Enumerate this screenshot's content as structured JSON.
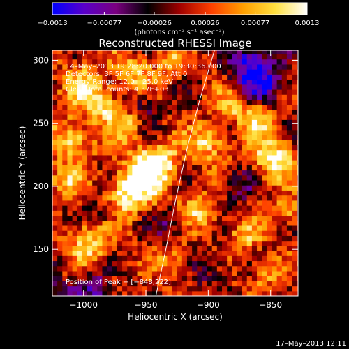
{
  "chart_data": {
    "type": "heatmap",
    "title": "Reconstructed RHESSI Image",
    "xlabel": "Heliocentric X (arcsec)",
    "ylabel": "Heliocentric Y (arcsec)",
    "xlim": [
      -1025,
      -828
    ],
    "ylim": [
      113,
      308
    ],
    "x_ticks": [
      -1000,
      -950,
      -900,
      -850
    ],
    "x_tick_labels": [
      "−1000",
      "−950",
      "−900",
      "−850"
    ],
    "y_ticks": [
      150,
      200,
      250,
      300
    ],
    "y_tick_labels": [
      "150",
      "200",
      "250",
      "300"
    ],
    "colorbar": {
      "min": -0.0013,
      "max": 0.0013,
      "ticks": [
        -0.0013,
        -0.00077,
        -0.00026,
        0.00026,
        0.00077,
        0.0013
      ],
      "tick_labels": [
        "−0.0013",
        "−0.00077",
        "−0.00026",
        "0.00026",
        "0.00077",
        "0.0013"
      ],
      "unit_label": "(photons cm⁻² s⁻¹ asec⁻²)",
      "colormap": [
        "#0000ff",
        "#5a00c8",
        "#7a0080",
        "#000000",
        "#a00000",
        "#ff4000",
        "#ffa000",
        "#ffe040",
        "#ffffff"
      ]
    },
    "annotations": {
      "time": "14–May–2013 19:28:20.000 to 19:30:36.000",
      "detectors": "Detectors: 3F 5F 6F 7F 8F 9F, Att 0",
      "energy": "Energy Range: 12.0 – 25.0 keV",
      "clean": "Clean     Total counts: 4.37E+03",
      "peak": "Position of Peak = [−848,222]"
    },
    "peak": {
      "x": -848,
      "y": 222
    },
    "limb_line": [
      [
        -942,
        113
      ],
      [
        -934,
        150
      ],
      [
        -926,
        190
      ],
      [
        -917,
        230
      ],
      [
        -907,
        268
      ],
      [
        -895,
        308
      ]
    ],
    "pixel_size_arcsec": 4,
    "blobs": [
      {
        "x": -953,
        "y": 207,
        "amp": 1.0,
        "r": 14
      },
      {
        "x": -938,
        "y": 222,
        "amp": 0.7,
        "r": 10
      },
      {
        "x": -968,
        "y": 190,
        "amp": 0.6,
        "r": 10
      },
      {
        "x": -1008,
        "y": 238,
        "amp": 0.75,
        "r": 11
      },
      {
        "x": -1015,
        "y": 205,
        "amp": 0.55,
        "r": 9
      },
      {
        "x": -995,
        "y": 155,
        "amp": 0.7,
        "r": 12
      },
      {
        "x": -1000,
        "y": 280,
        "amp": 0.65,
        "r": 12
      },
      {
        "x": -960,
        "y": 290,
        "amp": 0.6,
        "r": 10
      },
      {
        "x": -982,
        "y": 262,
        "amp": 0.7,
        "r": 9
      },
      {
        "x": -965,
        "y": 248,
        "amp": 0.5,
        "r": 8
      },
      {
        "x": -925,
        "y": 140,
        "amp": 0.55,
        "r": 9
      },
      {
        "x": -905,
        "y": 180,
        "amp": 0.65,
        "r": 10
      },
      {
        "x": -900,
        "y": 235,
        "amp": 0.7,
        "r": 10
      },
      {
        "x": -880,
        "y": 265,
        "amp": 0.6,
        "r": 9
      },
      {
        "x": -860,
        "y": 255,
        "amp": 0.75,
        "r": 9
      },
      {
        "x": -848,
        "y": 222,
        "amp": 0.95,
        "r": 11
      },
      {
        "x": -838,
        "y": 180,
        "amp": 0.55,
        "r": 8
      },
      {
        "x": -870,
        "y": 160,
        "amp": 0.5,
        "r": 9
      },
      {
        "x": -855,
        "y": 130,
        "amp": 0.45,
        "r": 8
      },
      {
        "x": -1010,
        "y": 130,
        "amp": 0.4,
        "r": 8
      },
      {
        "x": -930,
        "y": 300,
        "amp": 0.5,
        "r": 9
      },
      {
        "x": -975,
        "y": 125,
        "amp": 0.35,
        "r": 7
      }
    ],
    "dips": [
      {
        "x": -858,
        "y": 285,
        "amp": 0.9,
        "r": 14
      },
      {
        "x": -870,
        "y": 300,
        "amp": 0.6,
        "r": 10
      },
      {
        "x": -1010,
        "y": 120,
        "amp": 0.55,
        "r": 14
      },
      {
        "x": -985,
        "y": 118,
        "amp": 0.45,
        "r": 12
      },
      {
        "x": -930,
        "y": 170,
        "amp": 0.45,
        "r": 9
      },
      {
        "x": -980,
        "y": 180,
        "amp": 0.4,
        "r": 8
      },
      {
        "x": -950,
        "y": 265,
        "amp": 0.4,
        "r": 8
      },
      {
        "x": -875,
        "y": 200,
        "amp": 0.45,
        "r": 9
      },
      {
        "x": -900,
        "y": 135,
        "amp": 0.4,
        "r": 10
      }
    ]
  },
  "footer": {
    "date": "17–May–2013 12:11"
  }
}
